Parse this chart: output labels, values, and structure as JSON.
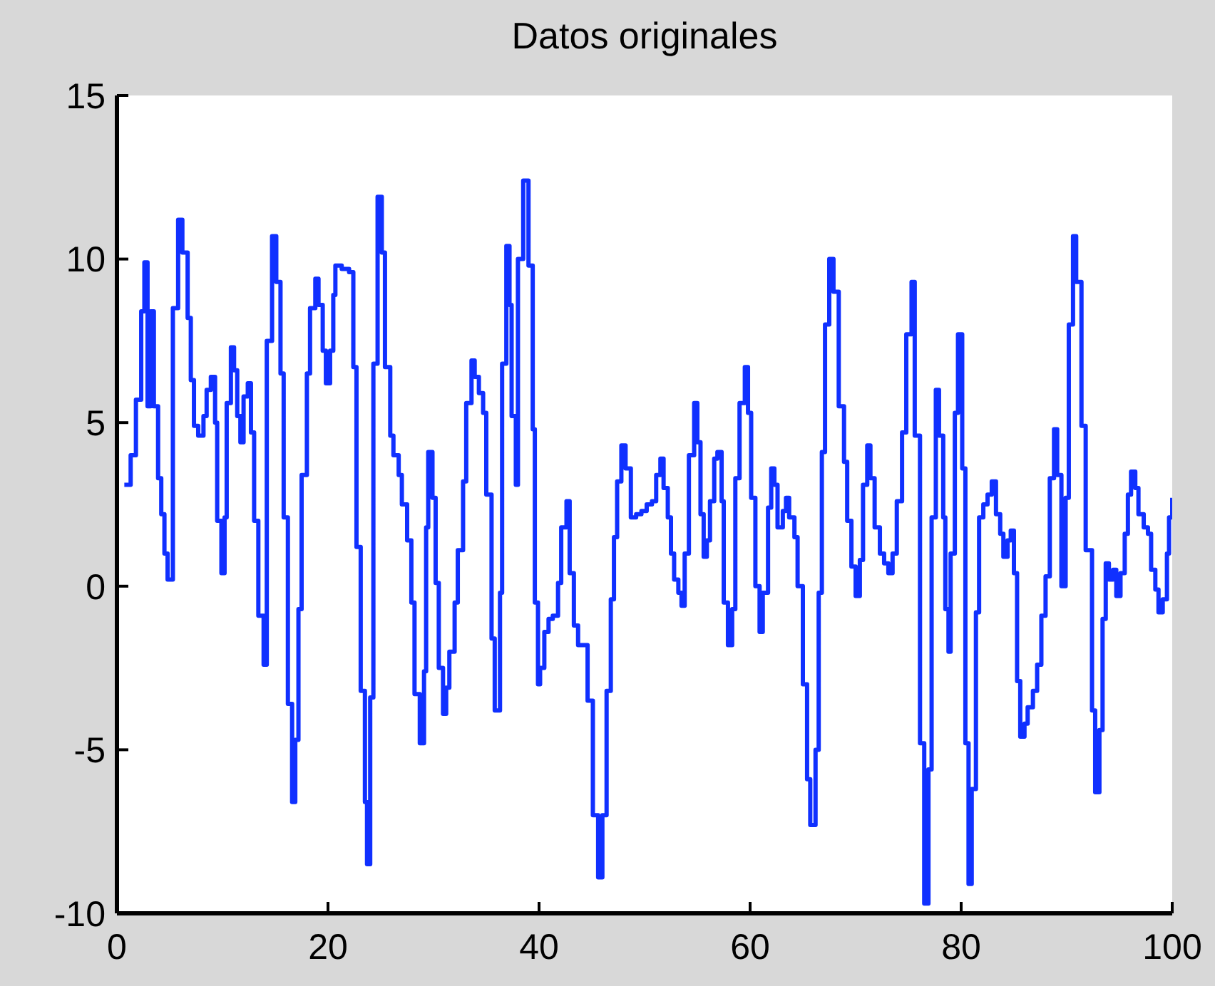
{
  "chart_data": {
    "type": "step",
    "title": "Datos originales",
    "xlim": [
      0,
      100
    ],
    "xticks": [
      0,
      20,
      40,
      60,
      80,
      100
    ],
    "ylim": [
      -10,
      15
    ],
    "yticks": [
      -10,
      -5,
      0,
      5,
      10,
      15
    ],
    "grid": false,
    "legend": false,
    "marker": "none",
    "line_style": "solid",
    "series": [
      {
        "color": "#1030ff",
        "x": [
          0.7,
          1.3,
          1.8,
          2.3,
          2.6,
          2.9,
          3.2,
          3.5,
          3.9,
          4.2,
          4.5,
          4.8,
          5.3,
          5.8,
          6.2,
          6.7,
          7.0,
          7.3,
          7.7,
          8.2,
          8.5,
          8.9,
          9.3,
          9.5,
          9.9,
          10.2,
          10.4,
          10.8,
          11.1,
          11.4,
          11.7,
          12.0,
          12.4,
          12.7,
          13.0,
          13.4,
          13.9,
          14.2,
          14.7,
          15.1,
          15.5,
          15.8,
          16.2,
          16.6,
          16.9,
          17.2,
          17.5,
          18.0,
          18.3,
          18.8,
          19.1,
          19.5,
          19.8,
          20.2,
          20.5,
          20.7,
          21.3,
          22.0,
          22.4,
          22.7,
          23.1,
          23.5,
          23.7,
          24.0,
          24.3,
          24.7,
          25.1,
          25.4,
          25.9,
          26.2,
          26.7,
          27.0,
          27.5,
          27.9,
          28.2,
          28.7,
          29.1,
          29.3,
          29.5,
          29.9,
          30.2,
          30.5,
          30.9,
          31.2,
          31.5,
          32.0,
          32.3,
          32.8,
          33.1,
          33.6,
          33.9,
          34.3,
          34.7,
          35.0,
          35.5,
          35.8,
          36.3,
          36.5,
          36.9,
          37.2,
          37.4,
          37.8,
          38.0,
          38.5,
          39.0,
          39.4,
          39.6,
          39.9,
          40.1,
          40.5,
          40.9,
          41.3,
          41.8,
          42.1,
          42.6,
          42.9,
          43.3,
          43.7,
          44.1,
          44.6,
          45.1,
          45.6,
          46.0,
          46.4,
          46.8,
          47.1,
          47.4,
          47.8,
          48.2,
          48.7,
          49.2,
          49.7,
          50.2,
          50.7,
          51.1,
          51.5,
          51.8,
          52.2,
          52.5,
          52.8,
          53.2,
          53.5,
          53.8,
          54.2,
          54.7,
          55.0,
          55.3,
          55.6,
          55.9,
          56.2,
          56.6,
          56.9,
          57.3,
          57.5,
          57.9,
          58.3,
          58.6,
          59.0,
          59.5,
          59.8,
          60.1,
          60.5,
          60.9,
          61.2,
          61.7,
          62.0,
          62.3,
          62.6,
          63.1,
          63.4,
          63.7,
          64.2,
          64.5,
          65.0,
          65.4,
          65.7,
          66.2,
          66.5,
          66.8,
          67.1,
          67.5,
          67.9,
          68.4,
          68.9,
          69.2,
          69.6,
          70.0,
          70.4,
          70.7,
          71.1,
          71.4,
          71.8,
          72.3,
          72.7,
          73.1,
          73.5,
          73.9,
          74.4,
          74.8,
          75.3,
          75.6,
          76.1,
          76.5,
          76.9,
          77.2,
          77.6,
          77.9,
          78.3,
          78.5,
          78.8,
          79.0,
          79.4,
          79.7,
          80.1,
          80.4,
          80.7,
          81.0,
          81.4,
          81.7,
          82.1,
          82.5,
          82.9,
          83.3,
          83.7,
          84.0,
          84.4,
          84.7,
          85.0,
          85.3,
          85.6,
          86.0,
          86.3,
          86.8,
          87.2,
          87.6,
          88.0,
          88.4,
          88.8,
          89.1,
          89.5,
          89.9,
          90.2,
          90.6,
          90.9,
          91.4,
          91.8,
          92.4,
          92.7,
          93.1,
          93.4,
          93.7,
          94.0,
          94.4,
          94.7,
          95.1,
          95.5,
          95.8,
          96.1,
          96.5,
          96.8,
          97.3,
          97.7,
          98.0,
          98.4,
          98.7,
          99.1,
          99.5,
          99.7,
          100
        ],
        "values": [
          3.1,
          4,
          5.7,
          8.4,
          9.9,
          5.5,
          8.4,
          5.5,
          3.3,
          2.2,
          1,
          0.2,
          8.5,
          11.2,
          10.2,
          8.2,
          6.3,
          4.9,
          4.6,
          5.2,
          6,
          6.4,
          5,
          2,
          0.4,
          2.1,
          5.6,
          7.3,
          6.6,
          5.2,
          4.4,
          5.8,
          6.2,
          4.7,
          2,
          -0.9,
          -2.4,
          7.5,
          10.7,
          9.3,
          6.5,
          2.1,
          -3.6,
          -6.6,
          -4.7,
          -0.7,
          3.4,
          6.5,
          8.5,
          9.4,
          8.6,
          7.2,
          6.2,
          7.2,
          8.9,
          9.8,
          9.7,
          9.6,
          6.7,
          1.2,
          -3.2,
          -6.6,
          -8.5,
          -3.4,
          6.8,
          11.9,
          10.2,
          6.7,
          4.6,
          4,
          3.4,
          2.5,
          1.4,
          -0.5,
          -3.3,
          -4.8,
          -2.6,
          1.8,
          4.1,
          2.7,
          0.1,
          -2.5,
          -3.9,
          -3.1,
          -2,
          -0.5,
          1.1,
          3.2,
          5.6,
          6.9,
          6.4,
          5.9,
          5.3,
          2.8,
          -1.6,
          -3.8,
          -0.2,
          6.8,
          10.4,
          8.6,
          5.2,
          3.1,
          10,
          12.4,
          9.8,
          4.8,
          -0.5,
          -3,
          -2.5,
          -1.4,
          -1,
          -0.9,
          0.1,
          1.8,
          2.6,
          0.4,
          -1.2,
          -1.8,
          -1.8,
          -3.5,
          -7,
          -8.9,
          -7,
          -3.2,
          -0.4,
          1.5,
          3.2,
          4.3,
          3.6,
          2.1,
          2.2,
          2.3,
          2.5,
          2.6,
          3.4,
          3.9,
          3,
          2.1,
          1,
          0.2,
          -0.2,
          -0.6,
          1,
          4,
          5.6,
          4.4,
          2.2,
          0.9,
          1.4,
          2.6,
          3.9,
          4.1,
          2.6,
          -0.5,
          -1.8,
          -0.7,
          3.3,
          5.6,
          6.7,
          5.3,
          2.7,
          0,
          -1.4,
          -0.2,
          2.4,
          3.6,
          3.1,
          1.8,
          2.3,
          2.7,
          2.1,
          1.5,
          0,
          -3,
          -5.9,
          -7.3,
          -5,
          -0.2,
          4.1,
          8,
          10,
          9,
          5.5,
          3.8,
          2,
          0.6,
          -0.3,
          0.8,
          3.1,
          4.3,
          3.3,
          1.8,
          1,
          0.7,
          0.4,
          1,
          2.6,
          4.7,
          7.7,
          9.3,
          4.6,
          -4.8,
          -9.7,
          -5.6,
          2.1,
          6,
          4.6,
          2.1,
          -0.7,
          -2,
          1,
          5.3,
          7.7,
          3.6,
          -4.8,
          -9.1,
          -6.2,
          -0.8,
          2.1,
          2.5,
          2.8,
          3.2,
          2.2,
          1.6,
          0.9,
          1.4,
          1.7,
          0.4,
          -2.9,
          -4.6,
          -4.2,
          -3.7,
          -3.2,
          -2.4,
          -0.9,
          0.3,
          3.3,
          4.8,
          3.4,
          0,
          2.7,
          8,
          10.7,
          9.3,
          4.9,
          1.1,
          -3.8,
          -6.3,
          -4.4,
          -1,
          0.7,
          0.2,
          0.5,
          -0.3,
          0.4,
          1.6,
          2.8,
          3.5,
          3,
          2.2,
          1.8,
          1.6,
          0.5,
          -0.1,
          -0.8,
          -0.4,
          1,
          2.1,
          2.7
        ]
      }
    ]
  }
}
